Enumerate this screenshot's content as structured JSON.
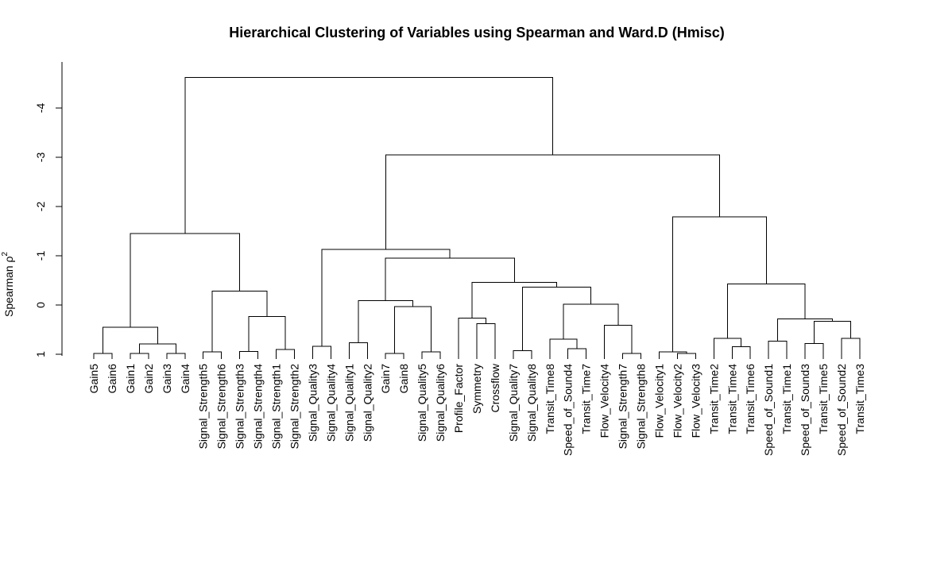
{
  "chart_data": {
    "type": "dendrogram",
    "title": "Hierarchical Clustering of Variables using Spearman and Ward.D (Hmisc)",
    "ylabel": "Spearman ρ",
    "ylabel_superscript": "2",
    "ylim": [
      1.1,
      -4.8
    ],
    "y_ticks": [
      1,
      0,
      -1,
      -2,
      -3,
      -4
    ],
    "y_tick_labels": [
      "1",
      "0",
      "-1",
      "-2",
      "-3",
      "-4"
    ],
    "leaves": [
      "Gain5",
      "Gain6",
      "Gain1",
      "Gain2",
      "Gain3",
      "Gain4",
      "Signal_Strength5",
      "Signal_Strength6",
      "Signal_Strength3",
      "Signal_Strength4",
      "Signal_Strength1",
      "Signal_Strength2",
      "Signal_Quality3",
      "Signal_Quality4",
      "Signal_Quality1",
      "Signal_Quality2",
      "Gain7",
      "Gain8",
      "Signal_Quality5",
      "Signal_Quality6",
      "Profile_Factor",
      "Symmetry",
      "Crossflow",
      "Signal_Quality7",
      "Signal_Quality8",
      "Transit_Time8",
      "Speed_of_Sound4",
      "Transit_Time7",
      "Flow_Velocity4",
      "Signal_Strength7",
      "Signal_Strength8",
      "Flow_Velocity1",
      "Flow_Velocity2",
      "Flow_Velocity3",
      "Transit_Time2",
      "Transit_Time4",
      "Transit_Time6",
      "Speed_of_Sound1",
      "Transit_Time1",
      "Speed_of_Sound3",
      "Transit_Time5",
      "Speed_of_Sound2",
      "Transit_Time3"
    ],
    "merges": [
      {
        "l": 0,
        "r": 1,
        "h": 0.98
      },
      {
        "l": 2,
        "r": 3,
        "h": 0.98
      },
      {
        "l": 4,
        "r": 5,
        "h": 0.98
      },
      {
        "l": -2,
        "r": -3,
        "h": 0.79
      },
      {
        "l": -1,
        "r": -4,
        "h": 0.45
      },
      {
        "l": 6,
        "r": 7,
        "h": 0.95
      },
      {
        "l": 8,
        "r": 9,
        "h": 0.94
      },
      {
        "l": 10,
        "r": 11,
        "h": 0.9
      },
      {
        "l": -7,
        "r": -8,
        "h": 0.23
      },
      {
        "l": -6,
        "r": -9,
        "h": -0.28
      },
      {
        "l": -5,
        "r": -10,
        "h": -1.45
      },
      {
        "l": 12,
        "r": 13,
        "h": 0.84
      },
      {
        "l": 14,
        "r": 15,
        "h": 0.77
      },
      {
        "l": 16,
        "r": 17,
        "h": 0.98
      },
      {
        "l": 18,
        "r": 19,
        "h": 0.95
      },
      {
        "l": -14,
        "r": -15,
        "h": 0.03
      },
      {
        "l": -13,
        "r": -16,
        "h": -0.09
      },
      {
        "l": 21,
        "r": 22,
        "h": 0.38
      },
      {
        "l": 20,
        "r": -18,
        "h": 0.27
      },
      {
        "l": 23,
        "r": 24,
        "h": 0.93
      },
      {
        "l": 26,
        "r": 27,
        "h": 0.89
      },
      {
        "l": 25,
        "r": -21,
        "h": 0.69
      },
      {
        "l": 29,
        "r": 30,
        "h": 0.98
      },
      {
        "l": 28,
        "r": -23,
        "h": 0.41
      },
      {
        "l": -22,
        "r": -24,
        "h": -0.02
      },
      {
        "l": -20,
        "r": -25,
        "h": -0.36
      },
      {
        "l": -19,
        "r": -26,
        "h": -0.46
      },
      {
        "l": -17,
        "r": -27,
        "h": -0.95
      },
      {
        "l": -12,
        "r": -28,
        "h": -1.13
      },
      {
        "l": 32,
        "r": 33,
        "h": 0.98
      },
      {
        "l": 31,
        "r": -30,
        "h": 0.95
      },
      {
        "l": 35,
        "r": 36,
        "h": 0.85
      },
      {
        "l": 34,
        "r": -32,
        "h": 0.68
      },
      {
        "l": 39,
        "r": 40,
        "h": 0.78
      },
      {
        "l": 37,
        "r": 38,
        "h": 0.73
      },
      {
        "l": 41,
        "r": 42,
        "h": 0.68
      },
      {
        "l": -34,
        "r": -36,
        "h": 0.33
      },
      {
        "l": -35,
        "r": -37,
        "h": 0.28
      },
      {
        "l": -33,
        "r": -38,
        "h": -0.43
      },
      {
        "l": -31,
        "r": -39,
        "h": -1.79
      },
      {
        "l": -29,
        "r": -40,
        "h": -3.05
      },
      {
        "l": -11,
        "r": -41,
        "h": -4.62
      }
    ]
  }
}
